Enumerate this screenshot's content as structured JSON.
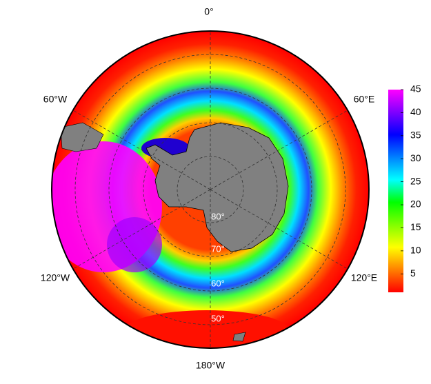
{
  "map": {
    "longitude_labels": [
      "0°",
      "60°E",
      "120°E",
      "180°W",
      "120°W",
      "60°W"
    ],
    "latitude_labels": [
      "80°",
      "70°",
      "60°",
      "50°"
    ],
    "colorbar": {
      "lim": [
        1,
        45
      ],
      "ticks": [
        5,
        10,
        15,
        20,
        25,
        30,
        35,
        40,
        45
      ],
      "colors": [
        "#ff0000",
        "#ff8000",
        "#ffff00",
        "#80ff00",
        "#00ff00",
        "#00ffff",
        "#0080ff",
        "#0000ff",
        "#8000ff",
        "#ff00ff"
      ]
    }
  }
}
